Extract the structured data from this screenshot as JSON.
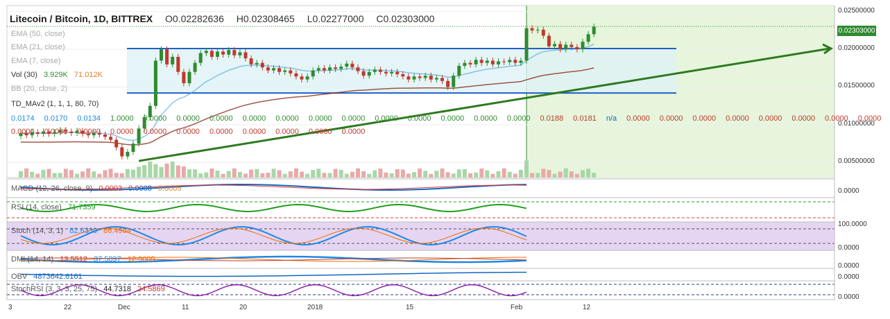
{
  "header": {
    "symbol": "Litecoin / Bitcoin, 1D, BITTREX",
    "open": "O0.02282636",
    "high": "H0.02308465",
    "low": "L0.02277000",
    "close": "C0.02303000"
  },
  "current_price": "0.02303000",
  "indicators": {
    "ema50": "EMA (50, close)",
    "ema21": "EMA (21, close)",
    "ema7": "EMA (7, close)",
    "vol": "Vol (30)",
    "vol_v1": "3.929K",
    "vol_v2": "71.012K",
    "bb": "BB (20, close, 2)",
    "td": "TD_MAv2 (1, 1, 1, 80, 70)",
    "td_row1": [
      "0.0174",
      "0.0170",
      "0.0134",
      "1.0000",
      "0.0000",
      "0.0000",
      "0.0000",
      "0.0000",
      "0.0000",
      "0.0000",
      "0.0000",
      "0.0000",
      "0.0000",
      "0.0000",
      "0.0000",
      "0.0000",
      "0.0188",
      "0.0181",
      "n/a",
      "0.0000",
      "0.0000",
      "0.0000",
      "0.0000",
      "0.0000",
      "0.0000",
      "0.0000",
      "0.0000"
    ],
    "td_row2": [
      "0.0000",
      "0.0000",
      "0.0000",
      "0.0000",
      "0.0000",
      "0.0000",
      "0.0000",
      "0.0000",
      "0.0000",
      "0.0000",
      "0.0000"
    ],
    "macd": "MACD (12, 26, close, 9)",
    "macd_v1": "0.0003",
    "macd_v2": "0.0008",
    "macd_v3": "0.0005",
    "rsi": "RSI (14, close)",
    "rsi_v": "71.7359",
    "stoch": "Stoch (14, 3, 1)",
    "stoch_v1": "82.6330",
    "stoch_v2": "86.4994",
    "dmi": "DMI (14, 14)",
    "dmi_v1": "13.5512",
    "dmi_v2": "37.5897",
    "dmi_v3": "12.9009",
    "obv": "OBV",
    "obv_v": "4873642.6161",
    "stochrsi": "StochRSI (3, 3, 3, 25, 75)",
    "stochrsi_v1": "44.7318",
    "stochrsi_v2": "24.5869"
  },
  "price_axis": [
    "0.02500000",
    "0.02000000",
    "0.01500000",
    "0.01000000",
    "0.00500000"
  ],
  "pane_axis": {
    "macd": [
      "0.0000"
    ],
    "stoch": [
      "100.0000",
      "0.0000"
    ],
    "dmi": [
      "0.0000"
    ],
    "obv": [
      "0.0000"
    ],
    "stochrsi": [
      "0.0000"
    ]
  },
  "time_axis": [
    "3",
    "22",
    "Dec",
    "11",
    "20",
    "2018",
    "15",
    "Feb",
    "12"
  ],
  "colors": {
    "bull": "#2f8b2f",
    "bear": "#c0392b",
    "channel": "#1f5fc9",
    "trend": "#2d7a1f",
    "macd": "#1565c0",
    "rsi": "#1e9e1e",
    "stoch_k": "#1e88e5",
    "stoch_d": "#ef6c00",
    "stochrsi": "#8e24aa"
  },
  "chart_data": {
    "type": "candlestick",
    "title": "Litecoin / Bitcoin, 1D, BITTREX",
    "y_range": [
      0.003,
      0.0258
    ],
    "candles": [
      {
        "o": 0.0085,
        "c": 0.0089
      },
      {
        "o": 0.0089,
        "c": 0.0086
      },
      {
        "o": 0.0086,
        "c": 0.009
      },
      {
        "o": 0.009,
        "c": 0.0088
      },
      {
        "o": 0.0088,
        "c": 0.0091
      },
      {
        "o": 0.0091,
        "c": 0.0088
      },
      {
        "o": 0.0088,
        "c": 0.009
      },
      {
        "o": 0.009,
        "c": 0.0093
      },
      {
        "o": 0.0093,
        "c": 0.0091
      },
      {
        "o": 0.0091,
        "c": 0.0089
      },
      {
        "o": 0.0089,
        "c": 0.0092
      },
      {
        "o": 0.0092,
        "c": 0.0088
      },
      {
        "o": 0.0088,
        "c": 0.0086
      },
      {
        "o": 0.0086,
        "c": 0.0089
      },
      {
        "o": 0.0089,
        "c": 0.0087
      },
      {
        "o": 0.0087,
        "c": 0.0084
      },
      {
        "o": 0.0084,
        "c": 0.008
      },
      {
        "o": 0.008,
        "c": 0.007
      },
      {
        "o": 0.007,
        "c": 0.0058
      },
      {
        "o": 0.0058,
        "c": 0.0064
      },
      {
        "o": 0.0064,
        "c": 0.0075
      },
      {
        "o": 0.0075,
        "c": 0.0095
      },
      {
        "o": 0.0095,
        "c": 0.011
      },
      {
        "o": 0.011,
        "c": 0.0125
      },
      {
        "o": 0.0125,
        "c": 0.0185
      },
      {
        "o": 0.0185,
        "c": 0.02
      },
      {
        "o": 0.02,
        "c": 0.018
      },
      {
        "o": 0.018,
        "c": 0.019
      },
      {
        "o": 0.019,
        "c": 0.017
      },
      {
        "o": 0.017,
        "c": 0.0155
      },
      {
        "o": 0.0155,
        "c": 0.017
      },
      {
        "o": 0.017,
        "c": 0.0182
      },
      {
        "o": 0.0182,
        "c": 0.0195
      },
      {
        "o": 0.0195,
        "c": 0.0198
      },
      {
        "o": 0.0198,
        "c": 0.019
      },
      {
        "o": 0.019,
        "c": 0.0197
      },
      {
        "o": 0.0197,
        "c": 0.0193
      },
      {
        "o": 0.0193,
        "c": 0.0199
      },
      {
        "o": 0.0199,
        "c": 0.0192
      },
      {
        "o": 0.0192,
        "c": 0.0196
      },
      {
        "o": 0.0196,
        "c": 0.0188
      },
      {
        "o": 0.0188,
        "c": 0.018
      },
      {
        "o": 0.018,
        "c": 0.0182
      },
      {
        "o": 0.0182,
        "c": 0.0176
      },
      {
        "o": 0.0176,
        "c": 0.0172
      },
      {
        "o": 0.0172,
        "c": 0.0175
      },
      {
        "o": 0.0175,
        "c": 0.017
      },
      {
        "o": 0.017,
        "c": 0.0172
      },
      {
        "o": 0.0172,
        "c": 0.0168
      },
      {
        "o": 0.0168,
        "c": 0.0164
      },
      {
        "o": 0.0164,
        "c": 0.016
      },
      {
        "o": 0.016,
        "c": 0.0164
      },
      {
        "o": 0.0164,
        "c": 0.0172
      },
      {
        "o": 0.0172,
        "c": 0.0175
      },
      {
        "o": 0.0175,
        "c": 0.0172
      },
      {
        "o": 0.0172,
        "c": 0.0176
      },
      {
        "o": 0.0176,
        "c": 0.0174
      },
      {
        "o": 0.0174,
        "c": 0.0177
      },
      {
        "o": 0.0177,
        "c": 0.0181
      },
      {
        "o": 0.0181,
        "c": 0.0176
      },
      {
        "o": 0.0176,
        "c": 0.0171
      },
      {
        "o": 0.0171,
        "c": 0.0165
      },
      {
        "o": 0.0165,
        "c": 0.017
      },
      {
        "o": 0.017,
        "c": 0.0173
      },
      {
        "o": 0.0173,
        "c": 0.017
      },
      {
        "o": 0.017,
        "c": 0.0168
      },
      {
        "o": 0.0168,
        "c": 0.017
      },
      {
        "o": 0.017,
        "c": 0.0167
      },
      {
        "o": 0.0167,
        "c": 0.0164
      },
      {
        "o": 0.0164,
        "c": 0.016
      },
      {
        "o": 0.016,
        "c": 0.0164
      },
      {
        "o": 0.0164,
        "c": 0.0162
      },
      {
        "o": 0.0162,
        "c": 0.0165
      },
      {
        "o": 0.0165,
        "c": 0.016
      },
      {
        "o": 0.016,
        "c": 0.0162
      },
      {
        "o": 0.0162,
        "c": 0.0158
      },
      {
        "o": 0.0158,
        "c": 0.015
      },
      {
        "o": 0.015,
        "c": 0.0165
      },
      {
        "o": 0.0165,
        "c": 0.0178
      },
      {
        "o": 0.0178,
        "c": 0.0182
      },
      {
        "o": 0.0182,
        "c": 0.018
      },
      {
        "o": 0.018,
        "c": 0.0186
      },
      {
        "o": 0.0186,
        "c": 0.0182
      },
      {
        "o": 0.0182,
        "c": 0.0185
      },
      {
        "o": 0.0185,
        "c": 0.018
      },
      {
        "o": 0.018,
        "c": 0.0184
      },
      {
        "o": 0.0184,
        "c": 0.0183
      },
      {
        "o": 0.0183,
        "c": 0.0186
      },
      {
        "o": 0.0186,
        "c": 0.0182
      },
      {
        "o": 0.0182,
        "c": 0.0185
      },
      {
        "o": 0.0185,
        "c": 0.0228
      },
      {
        "o": 0.0228,
        "c": 0.0225
      },
      {
        "o": 0.0225,
        "c": 0.0226
      },
      {
        "o": 0.0226,
        "c": 0.0218
      },
      {
        "o": 0.0218,
        "c": 0.0204
      },
      {
        "o": 0.0204,
        "c": 0.0207
      },
      {
        "o": 0.0207,
        "c": 0.02
      },
      {
        "o": 0.02,
        "c": 0.0206
      },
      {
        "o": 0.0206,
        "c": 0.0203
      },
      {
        "o": 0.0203,
        "c": 0.02
      },
      {
        "o": 0.02,
        "c": 0.021
      },
      {
        "o": 0.021,
        "c": 0.022
      },
      {
        "o": 0.022,
        "c": 0.023
      }
    ],
    "channel_top": 0.0201,
    "channel_bottom": 0.0142,
    "trendline": [
      {
        "t": 21,
        "p": 0.0052
      },
      {
        "t": 105,
        "p": 0.0201
      }
    ]
  }
}
